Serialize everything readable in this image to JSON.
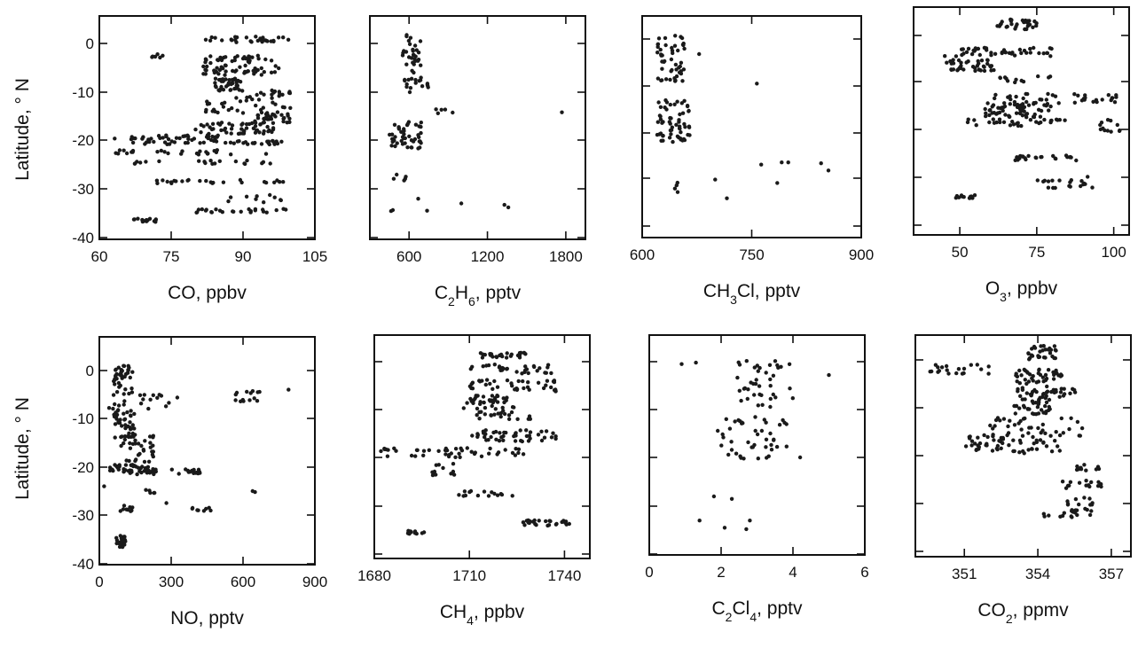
{
  "figure": {
    "latitude_label": "Latitude, ° N"
  },
  "chart_data": [
    {
      "type": "scatter",
      "xlabel": "CO, ppbv",
      "xlabel_parts": [
        {
          "t": "CO,  ppbv"
        }
      ],
      "xticks": [
        "60",
        "75",
        "90",
        "105"
      ],
      "xtick_values": [
        60,
        75,
        90,
        105
      ],
      "xlim": [
        60,
        105
      ],
      "yticks": [
        "0",
        "-10",
        "-20",
        "-30",
        "-40"
      ],
      "ytick_values": [
        0,
        -10,
        -20,
        -30,
        -40
      ],
      "ylim": [
        -40,
        5
      ],
      "ytick_labels_shown": true,
      "ylabel_shown": true,
      "clusters": [
        {
          "y": 0.8,
          "x0": 80,
          "x1": 100,
          "n": 30,
          "jy": 0.6
        },
        {
          "y": -2.5,
          "x0": 70,
          "x1": 74,
          "n": 6,
          "jy": 0.4
        },
        {
          "y": -3.5,
          "x0": 82,
          "x1": 96,
          "n": 30,
          "jy": 1.0
        },
        {
          "y": -5.5,
          "x0": 80,
          "x1": 98,
          "n": 40,
          "jy": 1.0
        },
        {
          "y": -8.5,
          "x0": 84,
          "x1": 90,
          "n": 40,
          "jy": 1.3
        },
        {
          "y": -10.5,
          "x0": 88,
          "x1": 100,
          "n": 20,
          "jy": 1.0
        },
        {
          "y": -13,
          "x0": 82,
          "x1": 100,
          "n": 30,
          "jy": 1.5
        },
        {
          "y": -15.5,
          "x0": 92,
          "x1": 100,
          "n": 30,
          "jy": 1.0
        },
        {
          "y": -17.5,
          "x0": 80,
          "x1": 97,
          "n": 50,
          "jy": 1.2
        },
        {
          "y": -19.5,
          "x0": 63,
          "x1": 85,
          "n": 35,
          "jy": 0.5
        },
        {
          "y": -20.5,
          "x0": 67,
          "x1": 99,
          "n": 40,
          "jy": 0.4
        },
        {
          "y": -22.5,
          "x0": 63,
          "x1": 99,
          "n": 25,
          "jy": 0.5
        },
        {
          "y": -24.5,
          "x0": 67,
          "x1": 99,
          "n": 20,
          "jy": 0.4
        },
        {
          "y": -28.5,
          "x0": 70,
          "x1": 99,
          "n": 25,
          "jy": 0.4
        },
        {
          "y": -32,
          "x0": 84,
          "x1": 99,
          "n": 10,
          "jy": 0.8
        },
        {
          "y": -34.5,
          "x0": 80,
          "x1": 99,
          "n": 25,
          "jy": 0.4
        },
        {
          "y": -36.5,
          "x0": 67,
          "x1": 72,
          "n": 14,
          "jy": 0.4
        }
      ]
    },
    {
      "type": "scatter",
      "xlabel": "C2H6, pptv",
      "xlabel_parts": [
        {
          "t": "C"
        },
        {
          "t": "2",
          "sub": true
        },
        {
          "t": "H"
        },
        {
          "t": "6",
          "sub": true
        },
        {
          "t": ",  pptv"
        }
      ],
      "xticks": [
        "600",
        "1200",
        "1800"
      ],
      "xtick_values": [
        600,
        1200,
        1800
      ],
      "xlim": [
        300,
        1950
      ],
      "yticks": [],
      "ytick_values": [
        0,
        -10,
        -20,
        -30,
        -40
      ],
      "ylim": [
        -40,
        5
      ],
      "ytick_labels_shown": false,
      "ylabel_shown": false,
      "clusters": [
        {
          "y": -3,
          "x0": 550,
          "x1": 700,
          "n": 35,
          "jy": 5
        },
        {
          "y": -8.5,
          "x0": 560,
          "x1": 760,
          "n": 14,
          "jy": 1.5
        },
        {
          "y": -14,
          "x0": 800,
          "x1": 1000,
          "n": 5,
          "jy": 0.5
        },
        {
          "y": -19,
          "x0": 450,
          "x1": 700,
          "n": 45,
          "jy": 3
        },
        {
          "y": -28,
          "x0": 480,
          "x1": 580,
          "n": 5,
          "jy": 1
        },
        {
          "y": -33,
          "x0": 430,
          "x1": 1000,
          "n": 4,
          "jy": 1.8
        }
      ],
      "points": [
        [
          1770,
          -14.2
        ],
        [
          1360,
          -33.8
        ],
        [
          1330,
          -33.3
        ],
        [
          1000,
          -33.0
        ]
      ]
    },
    {
      "type": "scatter",
      "xlabel": "CH3Cl, pptv",
      "xlabel_parts": [
        {
          "t": "CH"
        },
        {
          "t": "3",
          "sub": true
        },
        {
          "t": "Cl,  pptv"
        }
      ],
      "xticks": [
        "600",
        "750",
        "900"
      ],
      "xtick_values": [
        600,
        750,
        900
      ],
      "xlim": [
        600,
        900
      ],
      "yticks": [],
      "ytick_values": [
        0,
        -10,
        -20,
        -30,
        -40
      ],
      "ylim": [
        -40,
        5
      ],
      "ytick_labels_shown": false,
      "ylabel_shown": false,
      "clusters": [
        {
          "y": -4,
          "x0": 620,
          "x1": 660,
          "n": 50,
          "jy": 5
        },
        {
          "y": -17.5,
          "x0": 620,
          "x1": 665,
          "n": 60,
          "jy": 4.5
        },
        {
          "y": -32.5,
          "x0": 640,
          "x1": 650,
          "n": 4,
          "jy": 2
        }
      ],
      "points": [
        [
          678,
          -3.2
        ],
        [
          757,
          -9.5
        ],
        [
          700,
          -30.3
        ],
        [
          716,
          -34.2
        ],
        [
          763,
          -27.0
        ],
        [
          791,
          -26.5
        ],
        [
          800,
          -26.5
        ],
        [
          785,
          -31.0
        ],
        [
          845,
          -26.7
        ],
        [
          855,
          -28.3
        ]
      ]
    },
    {
      "type": "scatter",
      "xlabel": "O3, ppbv",
      "xlabel_parts": [
        {
          "t": "O"
        },
        {
          "t": "3",
          "sub": true
        },
        {
          "t": ",  ppbv"
        }
      ],
      "xticks": [
        "50",
        "75",
        "100"
      ],
      "xtick_values": [
        50,
        75,
        100
      ],
      "xlim": [
        35,
        105
      ],
      "yticks": [],
      "ytick_values": [
        0,
        -10,
        -20,
        -30,
        -40
      ],
      "ylim": [
        -40,
        5
      ],
      "ytick_labels_shown": false,
      "ylabel_shown": false,
      "clusters": [
        {
          "y": 2.5,
          "x0": 62,
          "x1": 75,
          "n": 30,
          "jy": 1.2
        },
        {
          "y": -3.5,
          "x0": 45,
          "x1": 80,
          "n": 45,
          "jy": 1.0
        },
        {
          "y": -6.5,
          "x0": 45,
          "x1": 62,
          "n": 40,
          "jy": 1.2
        },
        {
          "y": -9.5,
          "x0": 62,
          "x1": 80,
          "n": 12,
          "jy": 0.7
        },
        {
          "y": -13.5,
          "x0": 60,
          "x1": 102,
          "n": 40,
          "jy": 1.0
        },
        {
          "y": -16,
          "x0": 58,
          "x1": 80,
          "n": 60,
          "jy": 1.5
        },
        {
          "y": -18.5,
          "x0": 52,
          "x1": 85,
          "n": 30,
          "jy": 0.8
        },
        {
          "y": -19.5,
          "x0": 95,
          "x1": 102,
          "n": 12,
          "jy": 1.5
        },
        {
          "y": -26,
          "x0": 68,
          "x1": 88,
          "n": 25,
          "jy": 0.6
        },
        {
          "y": -31,
          "x0": 75,
          "x1": 95,
          "n": 20,
          "jy": 1.5
        },
        {
          "y": -34,
          "x0": 48,
          "x1": 55,
          "n": 12,
          "jy": 0.4
        }
      ]
    },
    {
      "type": "scatter",
      "xlabel": "NO, pptv",
      "xlabel_parts": [
        {
          "t": "NO,  pptv"
        }
      ],
      "xticks": [
        "0",
        "300",
        "600",
        "900"
      ],
      "xtick_values": [
        0,
        300,
        600,
        900
      ],
      "xlim": [
        0,
        900
      ],
      "yticks": [
        "0",
        "-10",
        "-20",
        "-30",
        "-40"
      ],
      "ytick_values": [
        0,
        -10,
        -20,
        -30,
        -40
      ],
      "ylim": [
        -40,
        5
      ],
      "ytick_labels_shown": true,
      "ylabel_shown": true,
      "clusters": [
        {
          "y": -2,
          "x0": 60,
          "x1": 140,
          "n": 40,
          "jy": 3
        },
        {
          "y": -6.5,
          "x0": 40,
          "x1": 330,
          "n": 20,
          "jy": 1.5
        },
        {
          "y": -5.5,
          "x0": 560,
          "x1": 680,
          "n": 14,
          "jy": 1.2
        },
        {
          "y": -11,
          "x0": 60,
          "x1": 150,
          "n": 40,
          "jy": 3
        },
        {
          "y": -17.5,
          "x0": 90,
          "x1": 230,
          "n": 50,
          "jy": 4
        },
        {
          "y": -20.5,
          "x0": 30,
          "x1": 240,
          "n": 35,
          "jy": 1.0
        },
        {
          "y": -21,
          "x0": 300,
          "x1": 420,
          "n": 16,
          "jy": 0.7
        },
        {
          "y": -25,
          "x0": 190,
          "x1": 240,
          "n": 5,
          "jy": 0.5
        },
        {
          "y": -28.5,
          "x0": 80,
          "x1": 140,
          "n": 10,
          "jy": 0.8
        },
        {
          "y": -28.8,
          "x0": 380,
          "x1": 470,
          "n": 8,
          "jy": 0.4
        },
        {
          "y": -35.5,
          "x0": 70,
          "x1": 110,
          "n": 25,
          "jy": 1.3
        }
      ],
      "points": [
        [
          790,
          -4.0
        ],
        [
          650,
          -25.2
        ],
        [
          640,
          -25.0
        ],
        [
          280,
          -27.5
        ],
        [
          20,
          -24.0
        ]
      ]
    },
    {
      "type": "scatter",
      "xlabel": "CH4, ppbv",
      "xlabel_parts": [
        {
          "t": "CH"
        },
        {
          "t": "4",
          "sub": true
        },
        {
          "t": ",  ppbv"
        }
      ],
      "xticks": [
        "1680",
        "1710",
        "1740"
      ],
      "xtick_values": [
        1680,
        1710,
        1740
      ],
      "xlim": [
        1680,
        1748
      ],
      "yticks": [],
      "ytick_values": [
        0,
        -10,
        -20,
        -30,
        -40
      ],
      "ylim": [
        -40,
        5
      ],
      "ytick_labels_shown": false,
      "ylabel_shown": false,
      "clusters": [
        {
          "y": 1.3,
          "x0": 1713,
          "x1": 1728,
          "n": 25,
          "jy": 0.6
        },
        {
          "y": -1.5,
          "x0": 1710,
          "x1": 1736,
          "n": 30,
          "jy": 1.0
        },
        {
          "y": -5,
          "x0": 1710,
          "x1": 1738,
          "n": 40,
          "jy": 1.2
        },
        {
          "y": -8.5,
          "x0": 1708,
          "x1": 1724,
          "n": 40,
          "jy": 1.5
        },
        {
          "y": -11,
          "x0": 1712,
          "x1": 1730,
          "n": 20,
          "jy": 1.0
        },
        {
          "y": -15.5,
          "x0": 1710,
          "x1": 1738,
          "n": 45,
          "jy": 1.2
        },
        {
          "y": -19,
          "x0": 1682,
          "x1": 1728,
          "n": 45,
          "jy": 1.0
        },
        {
          "y": -22.5,
          "x0": 1698,
          "x1": 1706,
          "n": 12,
          "jy": 1.2
        },
        {
          "y": -27.5,
          "x0": 1705,
          "x1": 1724,
          "n": 15,
          "jy": 0.6
        },
        {
          "y": -33.5,
          "x0": 1726,
          "x1": 1742,
          "n": 25,
          "jy": 0.6
        },
        {
          "y": -35.5,
          "x0": 1690,
          "x1": 1696,
          "n": 12,
          "jy": 0.4
        }
      ]
    },
    {
      "type": "scatter",
      "xlabel": "C2Cl4, pptv",
      "xlabel_parts": [
        {
          "t": "C"
        },
        {
          "t": "2",
          "sub": true
        },
        {
          "t": "Cl"
        },
        {
          "t": "4",
          "sub": true
        },
        {
          "t": ",  pptv"
        }
      ],
      "xticks": [
        "0",
        "2",
        "4",
        "6"
      ],
      "xtick_values": [
        0,
        2,
        4,
        6
      ],
      "xlim": [
        0,
        6
      ],
      "yticks": [],
      "ytick_values": [
        0,
        -10,
        -20,
        -30,
        -40
      ],
      "ylim": [
        -40,
        5
      ],
      "ytick_labels_shown": false,
      "ylabel_shown": false,
      "clusters": [
        {
          "y": -4.5,
          "x0": 2.4,
          "x1": 4.0,
          "n": 40,
          "jy": 5
        },
        {
          "y": -16,
          "x0": 1.9,
          "x1": 3.9,
          "n": 45,
          "jy": 4.5
        }
      ],
      "points": [
        [
          0.9,
          -0.5
        ],
        [
          1.3,
          -0.2
        ],
        [
          5.0,
          -2.8
        ],
        [
          4.2,
          -20.0
        ],
        [
          1.8,
          -28.0
        ],
        [
          2.3,
          -28.5
        ],
        [
          1.4,
          -33.0
        ],
        [
          2.1,
          -34.5
        ],
        [
          2.7,
          -34.8
        ],
        [
          2.8,
          -33.0
        ]
      ]
    },
    {
      "type": "scatter",
      "xlabel": "CO2, ppmv",
      "xlabel_parts": [
        {
          "t": "CO"
        },
        {
          "t": "2",
          "sub": true
        },
        {
          "t": ",  ppmv"
        }
      ],
      "xticks": [
        "351",
        "354",
        "357"
      ],
      "xtick_values": [
        351,
        354,
        357
      ],
      "xlim": [
        349,
        357.8
      ],
      "yticks": [],
      "ytick_values": [
        0,
        -10,
        -20,
        -30,
        -40
      ],
      "ylim": [
        -40,
        5
      ],
      "ytick_labels_shown": false,
      "ylabel_shown": false,
      "clusters": [
        {
          "y": 1.5,
          "x0": 353.5,
          "x1": 354.8,
          "n": 30,
          "jy": 1.5
        },
        {
          "y": -2,
          "x0": 349.6,
          "x1": 352,
          "n": 20,
          "jy": 1.0
        },
        {
          "y": -3.5,
          "x0": 353,
          "x1": 355,
          "n": 40,
          "jy": 1.5
        },
        {
          "y": -8.5,
          "x0": 353,
          "x1": 354.5,
          "n": 55,
          "jy": 3
        },
        {
          "y": -7,
          "x0": 354.5,
          "x1": 355.6,
          "n": 15,
          "jy": 1.0
        },
        {
          "y": -14,
          "x0": 352,
          "x1": 356,
          "n": 35,
          "jy": 2
        },
        {
          "y": -17.5,
          "x0": 351,
          "x1": 355,
          "n": 60,
          "jy": 2
        },
        {
          "y": -22.5,
          "x0": 355.5,
          "x1": 357,
          "n": 10,
          "jy": 0.6
        },
        {
          "y": -26,
          "x0": 355,
          "x1": 356.6,
          "n": 15,
          "jy": 0.8
        },
        {
          "y": -29.5,
          "x0": 355.2,
          "x1": 356.3,
          "n": 10,
          "jy": 0.8
        },
        {
          "y": -32,
          "x0": 354.2,
          "x1": 356.2,
          "n": 20,
          "jy": 1.0
        }
      ]
    }
  ]
}
